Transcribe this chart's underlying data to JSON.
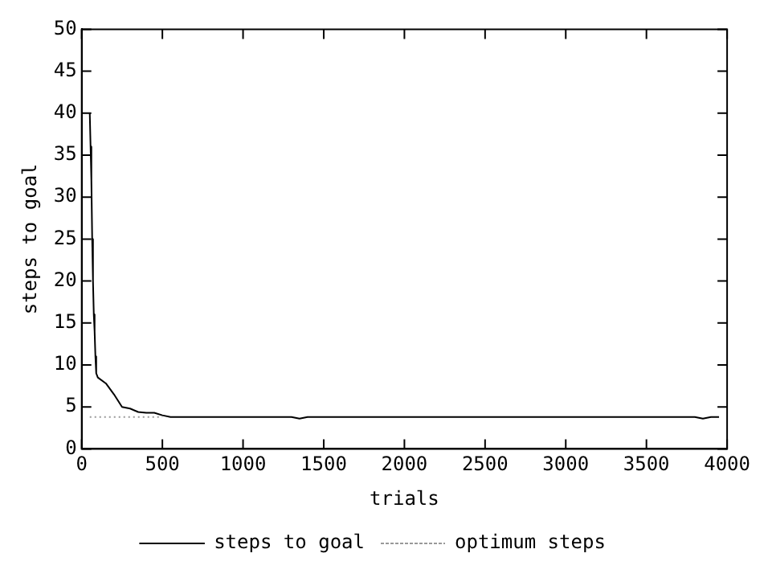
{
  "chart_data": {
    "type": "line",
    "xlabel": "trials",
    "ylabel": "steps to goal",
    "xlim": [
      0,
      4000
    ],
    "xticks": [
      0,
      500,
      1000,
      1500,
      2000,
      2500,
      3000,
      3500,
      4000
    ],
    "ylim": [
      0,
      50
    ],
    "yticks": [
      0,
      5,
      10,
      15,
      20,
      25,
      30,
      35,
      40,
      45,
      50
    ],
    "grid": false,
    "legend": "bottom",
    "marker": "none",
    "series": [
      {
        "name": "steps to goal",
        "color": "#000000",
        "line_style": "solid",
        "x": [
          50,
          55,
          60,
          65,
          70,
          75,
          80,
          85,
          90,
          100,
          150,
          200,
          250,
          300,
          350,
          400,
          450,
          500,
          550,
          600,
          1300,
          1350,
          1400,
          3800,
          3850,
          3900,
          3950
        ],
        "values": [
          40,
          36,
          32,
          25,
          20,
          16,
          14,
          11,
          9,
          8.5,
          7.8,
          6.5,
          5,
          4.8,
          4.4,
          4.3,
          4.3,
          4,
          3.8,
          3.8,
          3.8,
          3.6,
          3.8,
          3.8,
          3.6,
          3.8,
          3.8
        ]
      },
      {
        "name": "optimum steps",
        "color": "#999999",
        "line_style": "dotted",
        "x": [
          50,
          500
        ],
        "values": [
          3.8,
          3.8
        ]
      }
    ]
  }
}
